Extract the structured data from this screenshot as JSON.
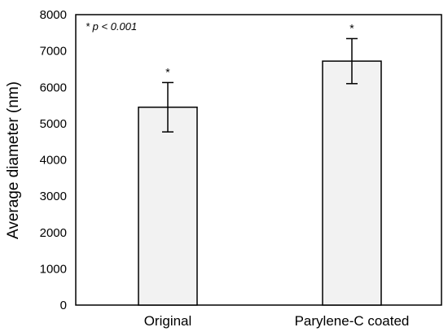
{
  "chart_data": {
    "type": "bar",
    "categories": [
      "Original",
      "Parylene-C coated"
    ],
    "values": [
      5450,
      6720
    ],
    "error": [
      680,
      620
    ],
    "significance": [
      "*",
      "*"
    ],
    "title": "",
    "xlabel": "",
    "ylabel": "Average diameter (nm)",
    "ylim": [
      0,
      8000
    ],
    "yticks": [
      0,
      1000,
      2000,
      3000,
      4000,
      5000,
      6000,
      7000,
      8000
    ],
    "annotation": "* p < 0.001",
    "grid": false,
    "legend": "none",
    "bar_color": "#f2f2f2",
    "edge_color": "#000000"
  }
}
